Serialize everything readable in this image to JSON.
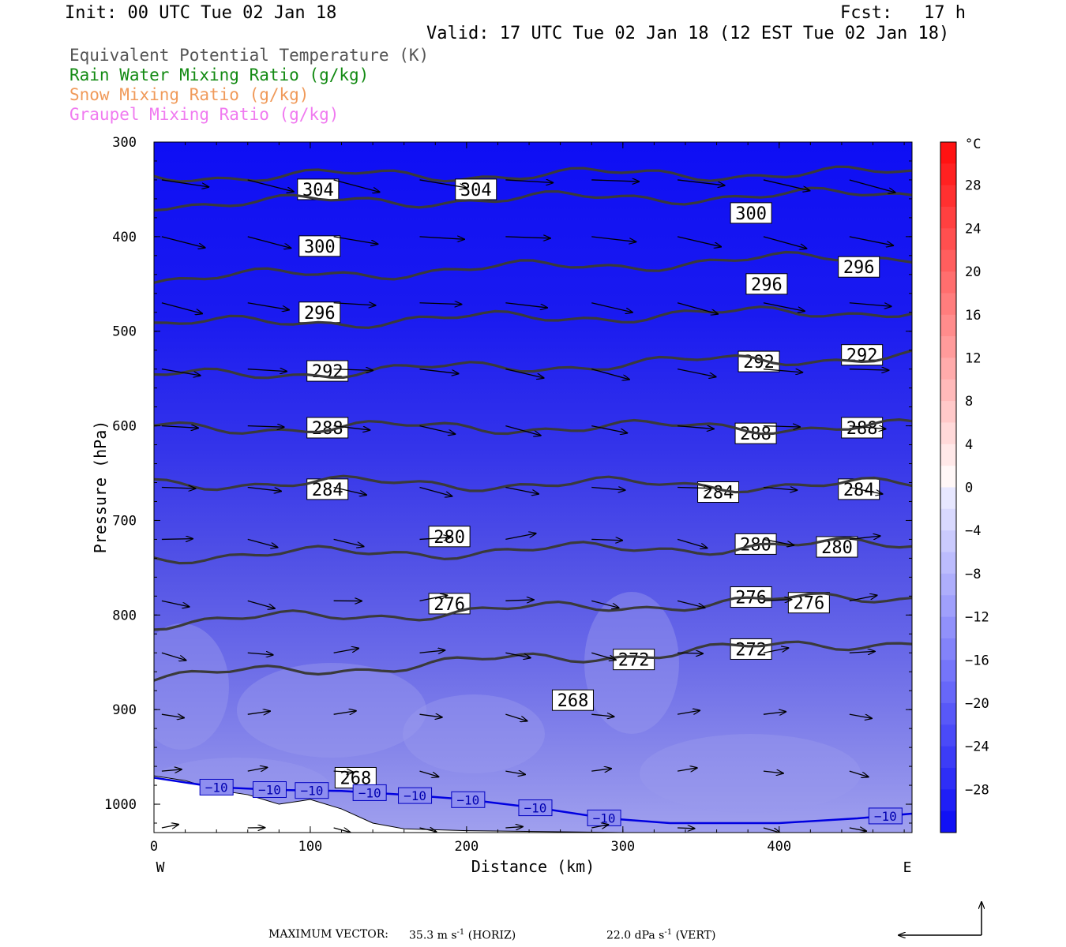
{
  "header": {
    "init": "Init: 00 UTC Tue 02 Jan 18",
    "fcst": "Fcst:   17 h",
    "valid": "Valid: 17 UTC Tue 02 Jan 18 (12 EST Tue 02 Jan 18)"
  },
  "legend": [
    {
      "text": "Equivalent Potential Temperature (K)",
      "color": "#555555"
    },
    {
      "text": "Rain Water Mixing Ratio (g/kg)",
      "color": "#138a13"
    },
    {
      "text": "Snow Mixing Ratio (g/kg)",
      "color": "#f09a5a"
    },
    {
      "text": "Graupel Mixing Ratio (g/kg)",
      "color": "#f07af0"
    }
  ],
  "chart_data": {
    "type": "cross-section",
    "xlabel": "Distance (km)",
    "ylabel": "Pressure (hPa)",
    "x_ticks": [
      0,
      100,
      200,
      300,
      400
    ],
    "x_ticks_text": [
      "0",
      "100",
      "200",
      "300",
      "400"
    ],
    "y_ticks": [
      300,
      400,
      500,
      600,
      700,
      800,
      900,
      1000
    ],
    "y_ticks_text": [
      "300",
      "400",
      "500",
      "600",
      "700",
      "800",
      "900",
      "1000"
    ],
    "xlim": [
      0,
      485
    ],
    "ylim": [
      1030,
      300
    ],
    "left_end": "W",
    "right_end": "E",
    "colorbar": {
      "unit": "°C",
      "labels": [
        "28",
        "24",
        "20",
        "16",
        "12",
        "8",
        "4",
        "0",
        "−4",
        "−8",
        "−12",
        "−16",
        "−20",
        "−24",
        "−28"
      ],
      "range": [
        -32,
        32
      ],
      "step": 2
    },
    "theta_e_contours": [
      {
        "level": 304,
        "p_left": 336,
        "p_right": 333,
        "labels": [
          {
            "text": "304",
            "x": 105,
            "p": 350
          },
          {
            "text": "304",
            "x": 206,
            "p": 350
          }
        ]
      },
      {
        "level": 300,
        "p_left": 365,
        "p_right": 355,
        "labels": [
          {
            "text": "300",
            "x": 106,
            "p": 410
          },
          {
            "text": "300",
            "x": 382,
            "p": 375
          }
        ]
      },
      {
        "level": 296,
        "p_left": 445,
        "p_right": 420,
        "labels": [
          {
            "text": "296",
            "x": 106,
            "p": 480
          },
          {
            "text": "296",
            "x": 392,
            "p": 450
          },
          {
            "text": "296",
            "x": 451,
            "p": 432
          }
        ]
      },
      {
        "level": 292,
        "p_left": 493,
        "p_right": 478,
        "labels": [
          {
            "text": "292",
            "x": 111,
            "p": 542
          },
          {
            "text": "292",
            "x": 387,
            "p": 532
          },
          {
            "text": "292",
            "x": 453,
            "p": 525
          }
        ]
      },
      {
        "level": 288,
        "p_left": 548,
        "p_right": 526,
        "labels": [
          {
            "text": "288",
            "x": 111,
            "p": 602
          },
          {
            "text": "288",
            "x": 385,
            "p": 608
          },
          {
            "text": "288",
            "x": 453,
            "p": 602
          }
        ]
      },
      {
        "level": 284,
        "p_left": 602,
        "p_right": 601,
        "labels": [
          {
            "text": "284",
            "x": 111,
            "p": 667
          },
          {
            "text": "284",
            "x": 361,
            "p": 670
          },
          {
            "text": "284",
            "x": 451,
            "p": 667
          }
        ]
      },
      {
        "level": 280,
        "p_left": 660,
        "p_right": 663,
        "labels": [
          {
            "text": "280",
            "x": 189,
            "p": 717
          },
          {
            "text": "280",
            "x": 385,
            "p": 725
          },
          {
            "text": "280",
            "x": 437,
            "p": 728
          }
        ]
      },
      {
        "level": 276,
        "p_left": 738,
        "p_right": 725,
        "labels": [
          {
            "text": "276",
            "x": 189,
            "p": 788
          },
          {
            "text": "276",
            "x": 382,
            "p": 781
          },
          {
            "text": "276",
            "x": 419,
            "p": 787
          }
        ]
      },
      {
        "level": 272,
        "p_left": 808,
        "p_right": 780,
        "labels": [
          {
            "text": "272",
            "x": 307,
            "p": 847
          },
          {
            "text": "272",
            "x": 382,
            "p": 836
          }
        ]
      },
      {
        "level": 268,
        "p_left": 866,
        "p_right": 827,
        "labels": [
          {
            "text": "268",
            "x": 268,
            "p": 890
          },
          {
            "text": "268",
            "x": 129,
            "p": 972
          }
        ]
      }
    ],
    "temperature_contour": {
      "level": -10,
      "label": "−10",
      "label_x": [
        40,
        74,
        101,
        138,
        167,
        201,
        244,
        288,
        468
      ]
    },
    "footer_max_vector": "MAXIMUM VECTOR:",
    "footer_horiz": "35.3 m s",
    "footer_horiz_unit": "(HORIZ)",
    "footer_vert": "22.0 dPa s",
    "footer_vert_unit": "(VERT)",
    "footer_exp": "-1"
  }
}
